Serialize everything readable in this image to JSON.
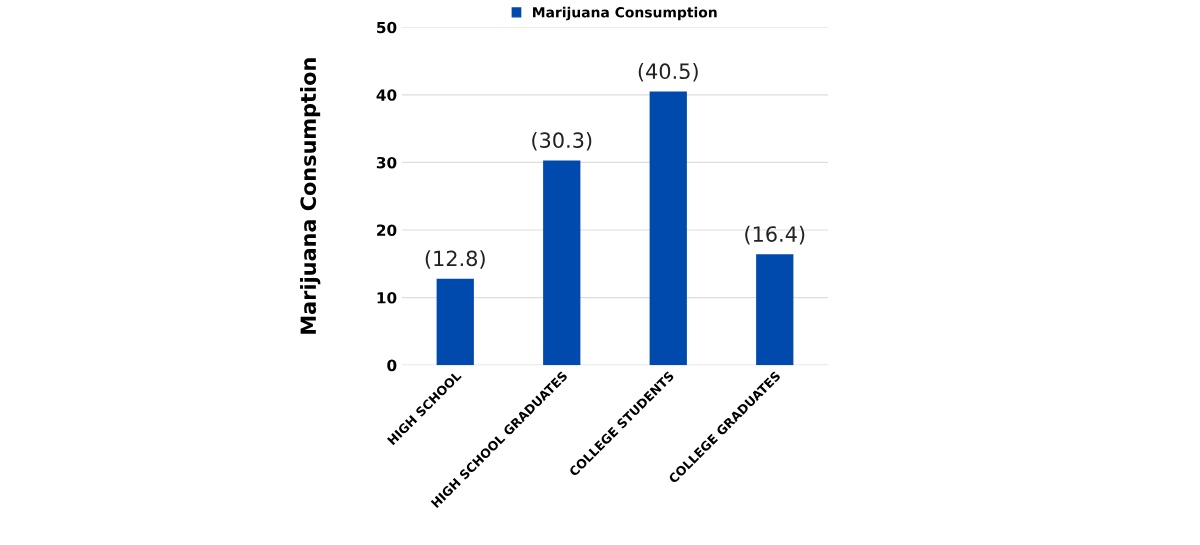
{
  "chart_data": {
    "type": "bar",
    "ylabel": "Marijuana Consumption",
    "categories": [
      "HIGH SCHOOL",
      "HIGH SCHOOL GRADUATES",
      "COLLEGE STUDENTS",
      "COLLEGE GRADUATES"
    ],
    "series": [
      {
        "name": "Marijuana Consumption",
        "color": "#004aad",
        "values": [
          12.8,
          30.3,
          40.5,
          16.4
        ],
        "value_labels": [
          "(12.8)",
          "(30.3)",
          "(40.5)",
          "(16.4)"
        ]
      }
    ],
    "ylim": [
      0,
      50
    ],
    "yticks": [
      0,
      10,
      20,
      30,
      40,
      50
    ],
    "grid": "y",
    "legend": "top"
  }
}
